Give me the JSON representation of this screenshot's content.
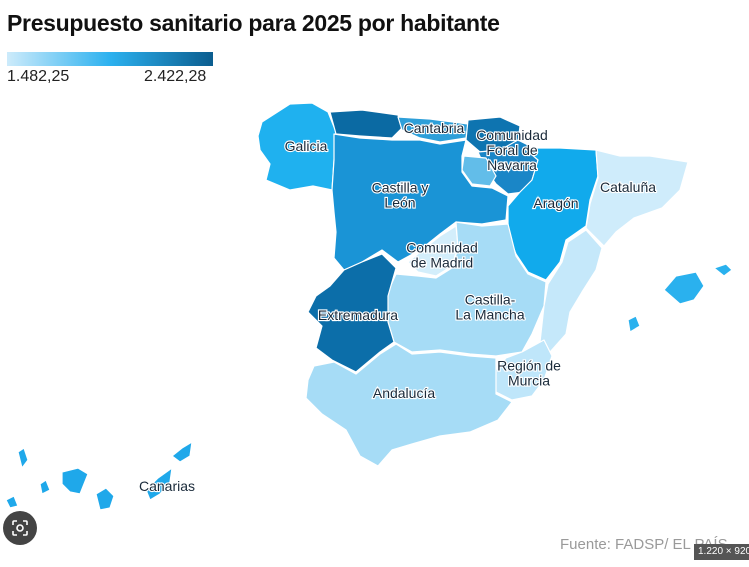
{
  "title": "Presupuesto sanitario para 2025 por habitante",
  "legend": {
    "min": "1.482,25",
    "max": "2.422,28",
    "colors": [
      "#cdebfb",
      "#2cb1ef",
      "#0b5d8f"
    ]
  },
  "regions": [
    {
      "name": "galicia",
      "label": "Galicia",
      "color": "#1fb1ef"
    },
    {
      "name": "asturias",
      "label": "",
      "color": "#0b6aa3"
    },
    {
      "name": "cantabria",
      "label": "Cantabria",
      "color": "#2d9fd9"
    },
    {
      "name": "pais-vasco",
      "label": "",
      "color": "#0e74b0"
    },
    {
      "name": "navarra",
      "label": "Comunidad Foral de Navarra",
      "lines": [
        "Comunidad",
        "Foral de",
        "Navarra"
      ],
      "color": "#1a86c7"
    },
    {
      "name": "la-rioja",
      "label": "",
      "color": "#62bde9"
    },
    {
      "name": "castilla-y-leon",
      "label": "Castilla y León",
      "lines": [
        "Castilla y",
        "León"
      ],
      "color": "#1a94d6"
    },
    {
      "name": "aragon",
      "label": "Aragón",
      "color": "#11aaec"
    },
    {
      "name": "cataluna",
      "label": "Cataluña",
      "color": "#cfecfb"
    },
    {
      "name": "madrid",
      "label": "Comunidad de Madrid",
      "lines": [
        "Comunidad",
        "de Madrid"
      ],
      "color": "#d3eefb"
    },
    {
      "name": "castilla-la-mancha",
      "label": "Castilla-La Mancha",
      "lines": [
        "Castilla-",
        "La Mancha"
      ],
      "color": "#a6dcf6"
    },
    {
      "name": "extremadura",
      "label": "Extremadura",
      "color": "#0c6ea9"
    },
    {
      "name": "comunidad-valenciana",
      "label": "",
      "color": "#c5e8fa"
    },
    {
      "name": "murcia",
      "label": "Región de Murcia",
      "lines": [
        "Región de",
        "Murcia"
      ],
      "color": "#bfe6fa"
    },
    {
      "name": "andalucia",
      "label": "Andalucía",
      "color": "#a6dcf6"
    },
    {
      "name": "baleares",
      "label": "",
      "color": "#2ab1ee"
    },
    {
      "name": "canarias",
      "label": "Canarias",
      "color": "#1fa8ea"
    }
  ],
  "source": "Fuente: FADSP/ EL PAÍS",
  "size_chip": "1.220 × 920",
  "icons": {
    "lens": "lens-icon"
  }
}
